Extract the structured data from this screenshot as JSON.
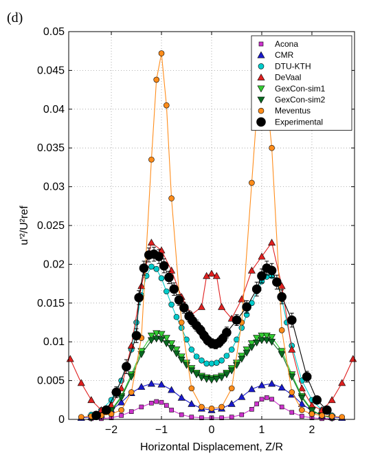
{
  "chart_data": {
    "type": "line",
    "panel_label": "(d)",
    "xlabel": "Horizontal Displacement, Z/R",
    "ylabel": "u'²/U²ref",
    "xlim": [
      -2.85,
      2.85
    ],
    "ylim": [
      0,
      0.05
    ],
    "xticks": [
      -2,
      -1,
      0,
      1,
      2
    ],
    "xtick_labels": [
      "−2",
      "−1",
      "0",
      "1",
      "2"
    ],
    "yticks": [
      0,
      0.005,
      0.01,
      0.015,
      0.02,
      0.025,
      0.03,
      0.035,
      0.04,
      0.045,
      0.05
    ],
    "ytick_labels": [
      "0",
      "0.005",
      "0.01",
      "0.015",
      "0.02",
      "0.025",
      "0.03",
      "0.035",
      "0.04",
      "0.045",
      "0.05"
    ],
    "grid": true,
    "legend_position": "top-right",
    "series": [
      {
        "name": "Acona",
        "marker": "square",
        "color": "#cc33cc",
        "x": [
          -2.4,
          -2.2,
          -2.0,
          -1.8,
          -1.6,
          -1.4,
          -1.2,
          -1.1,
          -1.0,
          -0.9,
          -0.8,
          -0.6,
          -0.4,
          -0.2,
          0.0,
          0.2,
          0.4,
          0.6,
          0.8,
          0.9,
          1.0,
          1.1,
          1.2,
          1.4,
          1.6,
          1.8,
          2.0,
          2.2,
          2.4
        ],
        "y": [
          0.0001,
          0.0001,
          0.0002,
          0.0005,
          0.001,
          0.0016,
          0.0021,
          0.0023,
          0.0022,
          0.0018,
          0.0012,
          0.0006,
          0.0003,
          0.0002,
          0.0002,
          0.0002,
          0.0003,
          0.0006,
          0.0013,
          0.002,
          0.0026,
          0.0028,
          0.0026,
          0.0016,
          0.0009,
          0.0004,
          0.0002,
          0.0001,
          0.0001
        ]
      },
      {
        "name": "CMR",
        "marker": "triangle-up",
        "color": "#1a1acc",
        "x": [
          -2.6,
          -2.4,
          -2.2,
          -2.0,
          -1.8,
          -1.6,
          -1.4,
          -1.2,
          -1.0,
          -0.8,
          -0.6,
          -0.4,
          -0.2,
          0.0,
          0.2,
          0.4,
          0.6,
          0.8,
          1.0,
          1.2,
          1.4,
          1.6,
          1.8,
          2.0,
          2.2,
          2.4,
          2.6
        ],
        "y": [
          0.0002,
          0.0003,
          0.0006,
          0.0012,
          0.0022,
          0.0034,
          0.0042,
          0.0046,
          0.0045,
          0.0038,
          0.0028,
          0.002,
          0.0014,
          0.0012,
          0.0014,
          0.002,
          0.0029,
          0.0039,
          0.0044,
          0.0046,
          0.0041,
          0.0032,
          0.002,
          0.0011,
          0.0005,
          0.0003,
          0.0002
        ]
      },
      {
        "name": "DTU-KTH",
        "marker": "circle-small",
        "color": "#00cccc",
        "x": [
          -2.4,
          -2.2,
          -2.0,
          -1.8,
          -1.6,
          -1.5,
          -1.4,
          -1.3,
          -1.2,
          -1.1,
          -1.0,
          -0.9,
          -0.8,
          -0.7,
          -0.6,
          -0.5,
          -0.4,
          -0.3,
          -0.2,
          -0.1,
          0.0,
          0.1,
          0.2,
          0.3,
          0.4,
          0.5,
          0.6,
          0.7,
          0.8,
          0.9,
          1.0,
          1.1,
          1.2,
          1.3,
          1.4,
          1.5,
          1.6,
          1.8,
          2.0,
          2.2,
          2.4
        ],
        "y": [
          0.0006,
          0.0012,
          0.0025,
          0.005,
          0.009,
          0.0125,
          0.016,
          0.0185,
          0.0197,
          0.0194,
          0.0182,
          0.0165,
          0.0148,
          0.0132,
          0.0118,
          0.0103,
          0.009,
          0.0081,
          0.0076,
          0.0072,
          0.0072,
          0.0073,
          0.0076,
          0.0082,
          0.009,
          0.0103,
          0.0118,
          0.0135,
          0.015,
          0.0165,
          0.0178,
          0.0184,
          0.0185,
          0.0178,
          0.0155,
          0.0125,
          0.0095,
          0.005,
          0.0025,
          0.0012,
          0.0005
        ]
      },
      {
        "name": "DeVaal",
        "marker": "triangle-up",
        "color": "#e02020",
        "x": [
          -2.82,
          -2.6,
          -2.4,
          -2.2,
          -2.0,
          -1.8,
          -1.6,
          -1.4,
          -1.2,
          -1.0,
          -0.8,
          -0.6,
          -0.4,
          -0.2,
          -0.1,
          0.0,
          0.1,
          0.2,
          0.4,
          0.6,
          0.8,
          1.0,
          1.2,
          1.4,
          1.6,
          1.8,
          2.0,
          2.2,
          2.4,
          2.6,
          2.82
        ],
        "y": [
          0.0078,
          0.0047,
          0.0025,
          0.0012,
          0.0018,
          0.004,
          0.0095,
          0.0172,
          0.0228,
          0.0218,
          0.0192,
          0.0158,
          0.0135,
          0.0145,
          0.0185,
          0.0188,
          0.0185,
          0.0145,
          0.013,
          0.0155,
          0.0192,
          0.021,
          0.0228,
          0.0172,
          0.009,
          0.004,
          0.0018,
          0.0012,
          0.0025,
          0.0047,
          0.0078
        ]
      },
      {
        "name": "GexCon-sim1",
        "marker": "triangle-down",
        "color": "#33cc33",
        "x": [
          -2.4,
          -2.2,
          -2.0,
          -1.8,
          -1.6,
          -1.4,
          -1.2,
          -1.1,
          -1.0,
          -0.9,
          -0.8,
          -0.7,
          -0.6,
          -0.5,
          -0.4,
          -0.3,
          -0.2,
          -0.1,
          0.0,
          0.1,
          0.2,
          0.3,
          0.4,
          0.5,
          0.6,
          0.7,
          0.8,
          0.9,
          1.0,
          1.1,
          1.2,
          1.4,
          1.6,
          1.8,
          2.0,
          2.2,
          2.4
        ],
        "y": [
          0.0002,
          0.0005,
          0.0012,
          0.003,
          0.0058,
          0.0088,
          0.0108,
          0.0111,
          0.011,
          0.0105,
          0.0098,
          0.009,
          0.0081,
          0.0073,
          0.0066,
          0.006,
          0.0056,
          0.0054,
          0.0053,
          0.0054,
          0.0056,
          0.006,
          0.0066,
          0.0073,
          0.0082,
          0.009,
          0.0098,
          0.0105,
          0.0108,
          0.0108,
          0.0106,
          0.0088,
          0.0058,
          0.003,
          0.0012,
          0.0005,
          0.0002
        ]
      },
      {
        "name": "GexCon-sim2",
        "marker": "triangle-down",
        "color": "#0a6a22",
        "x": [
          -2.4,
          -2.2,
          -2.0,
          -1.8,
          -1.6,
          -1.4,
          -1.2,
          -1.1,
          -1.0,
          -0.9,
          -0.8,
          -0.7,
          -0.6,
          -0.5,
          -0.4,
          -0.3,
          -0.2,
          -0.1,
          0.0,
          0.1,
          0.2,
          0.3,
          0.4,
          0.5,
          0.6,
          0.7,
          0.8,
          0.9,
          1.0,
          1.1,
          1.2,
          1.4,
          1.6,
          1.8,
          2.0,
          2.2,
          2.4
        ],
        "y": [
          0.0002,
          0.0005,
          0.0011,
          0.0028,
          0.0055,
          0.0084,
          0.0102,
          0.0104,
          0.0103,
          0.0098,
          0.0092,
          0.0085,
          0.0077,
          0.007,
          0.0063,
          0.0058,
          0.0054,
          0.0052,
          0.0051,
          0.0052,
          0.0054,
          0.0058,
          0.0063,
          0.007,
          0.0078,
          0.0086,
          0.0093,
          0.0099,
          0.0102,
          0.0102,
          0.01,
          0.0084,
          0.0055,
          0.0028,
          0.0011,
          0.0005,
          0.0002
        ]
      },
      {
        "name": "Meventus",
        "marker": "circle-small",
        "color": "#ff8c1a",
        "x": [
          -2.6,
          -2.4,
          -2.2,
          -2.0,
          -1.8,
          -1.6,
          -1.4,
          -1.2,
          -1.1,
          -1.0,
          -0.9,
          -0.8,
          -0.6,
          -0.4,
          -0.2,
          0.0,
          0.2,
          0.4,
          0.6,
          0.8,
          0.9,
          1.0,
          1.1,
          1.2,
          1.4,
          1.6,
          1.8,
          2.0,
          2.2,
          2.4,
          2.6
        ],
        "y": [
          0.0003,
          0.0004,
          0.0005,
          0.0007,
          0.0012,
          0.0035,
          0.0105,
          0.0335,
          0.0438,
          0.0472,
          0.0405,
          0.0285,
          0.0125,
          0.004,
          0.0016,
          0.0014,
          0.0016,
          0.004,
          0.0125,
          0.0305,
          0.0395,
          0.0455,
          0.0415,
          0.035,
          0.0115,
          0.0035,
          0.0012,
          0.0007,
          0.0005,
          0.0004,
          0.0003
        ]
      },
      {
        "name": "Experimental",
        "marker": "circle-large",
        "color": "#000000",
        "x": [
          -2.3,
          -2.1,
          -1.9,
          -1.7,
          -1.5,
          -1.45,
          -1.35,
          -1.25,
          -1.15,
          -1.05,
          -0.95,
          -0.85,
          -0.75,
          -0.65,
          -0.55,
          -0.45,
          -0.38,
          -0.3,
          -0.22,
          -0.15,
          -0.08,
          0.0,
          0.08,
          0.15,
          0.22,
          0.3,
          0.5,
          0.7,
          0.9,
          1.0,
          1.1,
          1.2,
          1.3,
          1.4,
          1.6,
          1.9,
          2.1,
          2.3
        ],
        "y": [
          0.0005,
          0.0012,
          0.0035,
          0.0068,
          0.0108,
          0.0157,
          0.0195,
          0.0212,
          0.0213,
          0.021,
          0.0198,
          0.0183,
          0.0168,
          0.0154,
          0.0144,
          0.0133,
          0.0127,
          0.0121,
          0.0115,
          0.0108,
          0.0102,
          0.0098,
          0.0097,
          0.0099,
          0.0104,
          0.0112,
          0.0128,
          0.0145,
          0.0168,
          0.0185,
          0.0195,
          0.0192,
          0.0177,
          0.0158,
          0.0128,
          0.0055,
          0.0025,
          0.0012
        ],
        "err": [
          0.0003,
          0.0005,
          0.0007,
          0.0009,
          0.0009,
          0.0009,
          0.0009,
          0.0009,
          0.0009,
          0.0009,
          0.0009,
          0.0008,
          0.0008,
          0.0007,
          0.0007,
          0.0007,
          0.0007,
          0.0007,
          0.0006,
          0.0006,
          0.0006,
          0.0006,
          0.0006,
          0.0006,
          0.0006,
          0.0007,
          0.0007,
          0.0008,
          0.0009,
          0.0009,
          0.0009,
          0.0009,
          0.0009,
          0.0009,
          0.0009,
          0.0007,
          0.0005,
          0.0003
        ]
      }
    ]
  }
}
